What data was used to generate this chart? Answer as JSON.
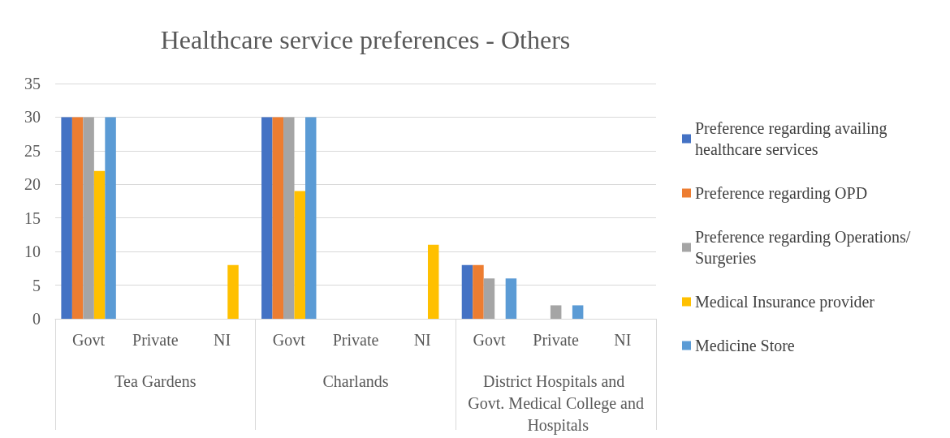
{
  "chart_data": {
    "type": "bar",
    "title": "Healthcare service preferences - Others",
    "categories": [
      "Govt",
      "Private",
      "NI",
      "Govt",
      "Private",
      "NI",
      "Govt",
      "Private",
      "NI"
    ],
    "annotations": [
      "Tea Gardens",
      "Charlands",
      "District Hospitals and Govt. Medical College and Hospitals"
    ],
    "series": [
      {
        "name": "Preference regarding availing healthcare services",
        "color": "#4472c4",
        "values": [
          30,
          null,
          null,
          30,
          null,
          null,
          8,
          null,
          null
        ]
      },
      {
        "name": "Preference regarding OPD",
        "color": "#ed7d31",
        "values": [
          30,
          null,
          null,
          30,
          null,
          null,
          8,
          null,
          null
        ]
      },
      {
        "name": "Preference regarding Operations/Surgeries",
        "color": "#a5a5a5",
        "values": [
          30,
          null,
          null,
          30,
          null,
          null,
          6,
          2,
          null
        ]
      },
      {
        "name": "Medical Insurance provider",
        "color": "#ffc000",
        "values": [
          22,
          null,
          8,
          19,
          null,
          11,
          null,
          null,
          null
        ]
      },
      {
        "name": "Medicine Store",
        "color": "#5b9bd5",
        "values": [
          30,
          null,
          null,
          30,
          null,
          null,
          6,
          2,
          null
        ]
      }
    ],
    "ylim": [
      0,
      35
    ],
    "yticks": [
      0,
      5,
      10,
      15,
      20,
      25,
      30,
      35
    ],
    "grid": "y",
    "legend": "right"
  }
}
